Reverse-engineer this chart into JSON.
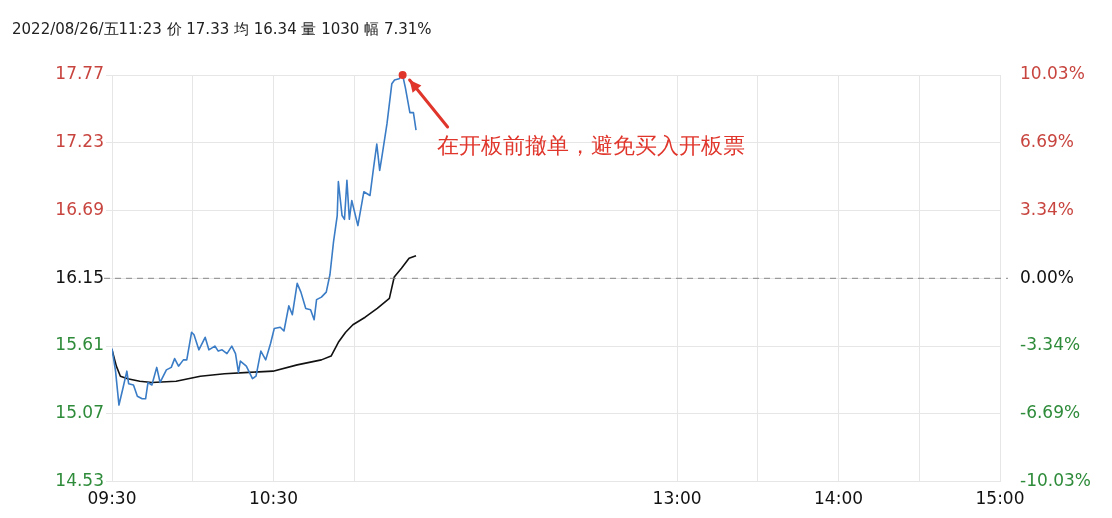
{
  "chart_data": {
    "type": "line",
    "title": "2022/08/26/五11:23 价 17.33 均 16.34 量 1030 幅 7.31%",
    "series": [
      {
        "color": "#3a7cc6",
        "x": [
          9.5,
          9.522,
          9.543,
          9.567,
          9.592,
          9.603,
          9.633,
          9.657,
          9.687,
          9.708,
          9.723,
          9.747,
          9.777,
          9.798,
          9.837,
          9.867,
          9.888,
          9.912,
          9.942,
          9.963,
          9.993,
          10.008,
          10.038,
          10.077,
          10.1,
          10.137,
          10.158,
          10.182,
          10.212,
          10.242,
          10.265,
          10.283,
          10.295,
          10.332,
          10.37,
          10.392,
          10.422,
          10.452,
          10.482,
          10.505,
          10.542,
          10.565,
          10.595,
          10.617,
          10.647,
          10.67,
          10.7,
          10.73,
          10.752,
          10.767,
          10.797,
          10.827,
          10.85,
          10.872,
          10.895,
          10.902,
          10.925,
          10.94,
          10.955,
          10.97,
          10.985,
          11.023,
          11.06,
          11.098,
          11.12,
          11.14,
          11.158,
          11.173,
          11.203,
          11.233,
          11.25,
          11.278,
          11.3,
          11.317,
          11.345,
          11.367,
          11.383
        ],
        "values": [
          15.59,
          15.41,
          15.14,
          15.27,
          15.41,
          15.31,
          15.3,
          15.21,
          15.19,
          15.19,
          15.32,
          15.3,
          15.44,
          15.32,
          15.42,
          15.44,
          15.51,
          15.45,
          15.5,
          15.5,
          15.72,
          15.7,
          15.58,
          15.68,
          15.58,
          15.61,
          15.57,
          15.58,
          15.55,
          15.61,
          15.55,
          15.4,
          15.49,
          15.45,
          15.35,
          15.37,
          15.57,
          15.5,
          15.63,
          15.75,
          15.76,
          15.73,
          15.93,
          15.86,
          16.11,
          16.04,
          15.91,
          15.9,
          15.82,
          15.98,
          16,
          16.04,
          16.18,
          16.44,
          16.65,
          16.92,
          16.65,
          16.62,
          16.93,
          16.62,
          16.77,
          16.57,
          16.84,
          16.81,
          17.03,
          17.22,
          17.01,
          17.13,
          17.38,
          17.7,
          17.73,
          17.74,
          17.77,
          17.67,
          17.47,
          17.47,
          17.33
        ]
      },
      {
        "color": "#111111",
        "x": [
          9.5,
          9.527,
          9.552,
          9.597,
          9.672,
          9.747,
          9.897,
          10.047,
          10.197,
          10.347,
          10.497,
          10.647,
          10.797,
          10.857,
          10.902,
          10.947,
          10.992,
          11.068,
          11.143,
          11.218,
          11.248,
          11.293,
          11.34,
          11.383
        ],
        "values": [
          15.58,
          15.45,
          15.37,
          15.35,
          15.33,
          15.32,
          15.33,
          15.37,
          15.39,
          15.4,
          15.41,
          15.46,
          15.5,
          15.53,
          15.64,
          15.72,
          15.78,
          15.84,
          15.91,
          15.99,
          16.16,
          16.23,
          16.31,
          16.33
        ]
      }
    ],
    "xlim": [
      9.5,
      15
    ],
    "xticks": [
      {
        "value": 9.5,
        "label": "09:30"
      },
      {
        "value": 10,
        "label": null
      },
      {
        "value": 10.5,
        "label": "10:30"
      },
      {
        "value": 11,
        "label": null
      },
      {
        "value": 13,
        "label": "13:00"
      },
      {
        "value": 13.5,
        "label": null
      },
      {
        "value": 14,
        "label": "14:00"
      },
      {
        "value": 14.5,
        "label": null
      },
      {
        "value": 15,
        "label": "15:00"
      }
    ],
    "ylim": [
      14.53,
      17.77
    ],
    "yticks": [
      14.53,
      15.07,
      15.61,
      16.15,
      16.69,
      17.23,
      17.77
    ],
    "y2lim": [
      -10.03,
      10.03
    ],
    "y2ticks": [
      {
        "value": -10.03,
        "label": "-10.03%"
      },
      {
        "value": -6.69,
        "label": "-6.69%"
      },
      {
        "value": -3.34,
        "label": "-3.34%"
      },
      {
        "value": 0,
        "label": "0.00%"
      },
      {
        "value": 3.34,
        "label": "3.34%"
      },
      {
        "value": 6.69,
        "label": "6.69%"
      },
      {
        "value": 10.03,
        "label": "10.03%"
      }
    ],
    "ref_lines": [
      {
        "axis": "y",
        "value": 16.15,
        "color": "#888888",
        "line_style": "dashed"
      }
    ],
    "annotations": [
      {
        "text": "在开板前撤单，避免买入开板票",
        "x": 11.3,
        "y": 17.77
      }
    ],
    "grid": true,
    "legend": false,
    "marker": "none",
    "line_style": "solid"
  }
}
